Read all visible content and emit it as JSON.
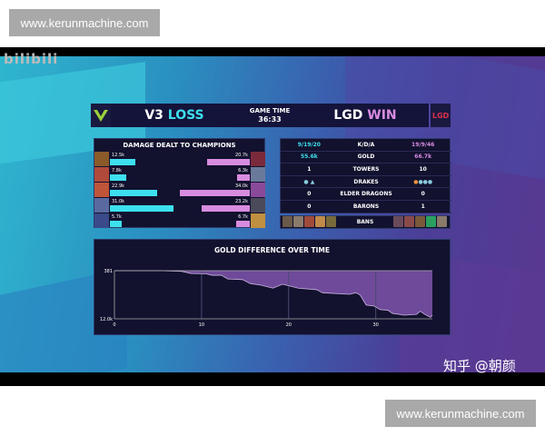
{
  "watermarks": {
    "top": "www.kerunmachine.com",
    "bottom": "www.kerunmachine.com",
    "zhihu": "知乎 @朝颜",
    "bilibili": "bilibili"
  },
  "header": {
    "left_team": "V3",
    "left_result": "LOSS",
    "game_time_label": "GAME TIME",
    "game_time": "36:33",
    "right_team": "LGD",
    "right_result": "WIN"
  },
  "colors": {
    "v3": "#3de0ee",
    "lgd": "#d88ce0",
    "panel": "#12112e",
    "gold_fill": "#6f4a9a"
  },
  "damage": {
    "title": "DAMAGE DEALT TO CHAMPIONS",
    "scale_max_k": 35,
    "rows": [
      {
        "left": "12.5k",
        "left_k": 12.5,
        "right": "20.7k",
        "right_k": 20.7
      },
      {
        "left": "7.8k",
        "left_k": 7.8,
        "right": "6.3k",
        "right_k": 6.3
      },
      {
        "left": "22.9k",
        "left_k": 22.9,
        "right": "34.0k",
        "right_k": 34.0
      },
      {
        "left": "31.0k",
        "left_k": 31.0,
        "right": "23.2k",
        "right_k": 23.2
      },
      {
        "left": "5.7k",
        "left_k": 5.7,
        "right": "6.7k",
        "right_k": 6.7
      }
    ]
  },
  "stats": {
    "rows": [
      {
        "left": "9/19/20",
        "label": "K/D/A",
        "right": "19/9/46"
      },
      {
        "left": "55.6k",
        "label": "GOLD",
        "right": "66.7k"
      },
      {
        "left": "1",
        "label": "TOWERS",
        "right": "10"
      },
      {
        "left": "",
        "label": "DRAKES",
        "right": ""
      },
      {
        "left": "0",
        "label": "ELDER DRAGONS",
        "right": "0"
      },
      {
        "left": "0",
        "label": "BARONS",
        "right": "1"
      }
    ],
    "bans_label": "BANS"
  },
  "chart_data": {
    "type": "area",
    "title": "GOLD DIFFERENCE OVER TIME",
    "xlabel": "",
    "ylabel": "",
    "xlim": [
      0,
      36.5
    ],
    "ylim": [
      -12000,
      381
    ],
    "x_ticks": [
      "0",
      "10",
      "20",
      "30"
    ],
    "y_ticks": [
      "381",
      "12.0k"
    ],
    "grid": true,
    "points": [
      [
        0,
        381
      ],
      [
        3.3,
        460
      ],
      [
        4.2,
        618
      ],
      [
        5.3,
        381
      ],
      [
        7.7,
        223
      ],
      [
        8.8,
        -329
      ],
      [
        10.5,
        -408
      ],
      [
        11.2,
        -802
      ],
      [
        12.3,
        -802
      ],
      [
        13.0,
        -1750
      ],
      [
        14.7,
        -1907
      ],
      [
        15.6,
        -2933
      ],
      [
        16.8,
        -3327
      ],
      [
        18.2,
        -4116
      ],
      [
        19.3,
        -3090
      ],
      [
        21.1,
        -4116
      ],
      [
        23.2,
        -4510
      ],
      [
        23.9,
        -5300
      ],
      [
        27.0,
        -5694
      ],
      [
        27.7,
        -5300
      ],
      [
        28.2,
        -5852
      ],
      [
        28.9,
        -8456
      ],
      [
        29.8,
        -8693
      ],
      [
        30.5,
        -9640
      ],
      [
        31.4,
        -9797
      ],
      [
        31.9,
        -10586
      ],
      [
        33.3,
        -11060
      ],
      [
        34.7,
        -10823
      ],
      [
        35.1,
        -10034
      ],
      [
        35.6,
        -10823
      ],
      [
        36.3,
        -11612
      ],
      [
        36.5,
        -11060
      ]
    ]
  }
}
